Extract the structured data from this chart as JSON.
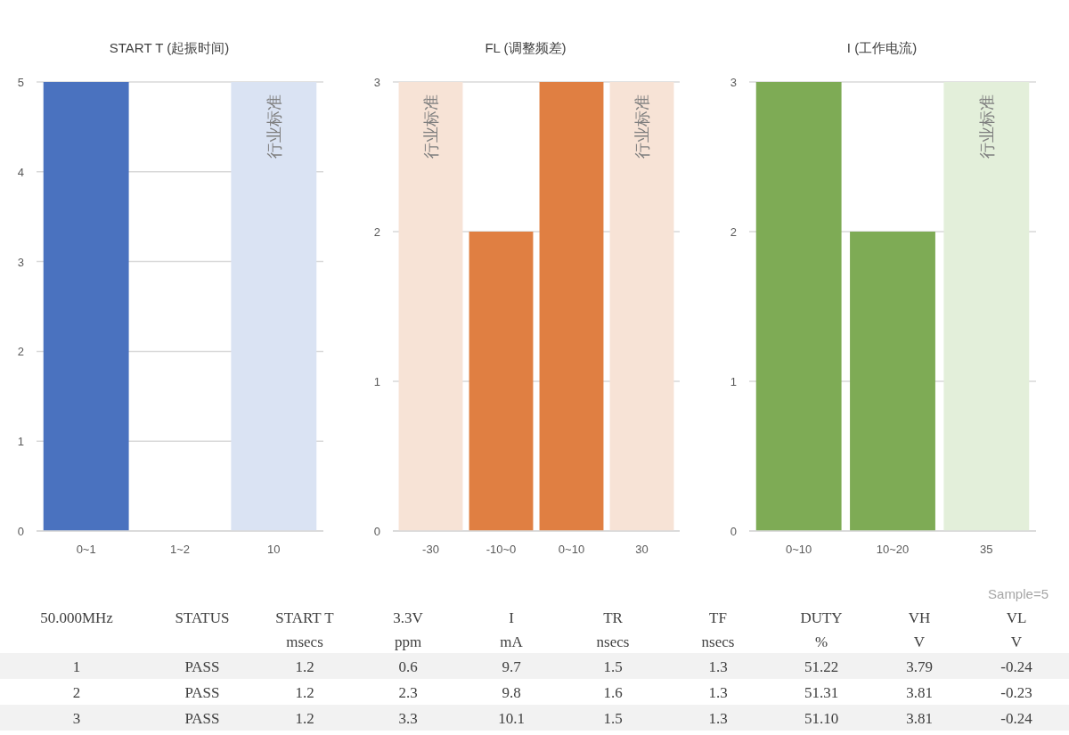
{
  "chart_data": [
    {
      "type": "bar",
      "title": "START T (起振时间)",
      "categories": [
        "0~1",
        "1~2",
        "10"
      ],
      "values": [
        5,
        0,
        5
      ],
      "colors": [
        "#4a72bf",
        "#4a72bf",
        "#dae3f3"
      ],
      "ylim": [
        0,
        5
      ],
      "yticks": [
        0,
        1,
        2,
        3,
        4,
        5
      ],
      "grid": "y",
      "annotations": [
        {
          "text": "行业标准",
          "x": "10",
          "y": 5
        }
      ]
    },
    {
      "type": "bar",
      "title": "FL (调整频差)",
      "categories": [
        "-30",
        "-10~0",
        "0~10",
        "30"
      ],
      "values": [
        3,
        2,
        3,
        3
      ],
      "colors": [
        "#f7e3d6",
        "#e07f42",
        "#e07f42",
        "#f7e3d6"
      ],
      "ylim": [
        0,
        3
      ],
      "yticks": [
        0,
        1,
        2,
        3
      ],
      "grid": "y",
      "annotations": [
        {
          "text": "行业标准",
          "x": "-30",
          "y": 3
        },
        {
          "text": "行业标准",
          "x": "30",
          "y": 3
        }
      ]
    },
    {
      "type": "bar",
      "title": "I (工作电流)",
      "categories": [
        "0~10",
        "10~20",
        "35"
      ],
      "values": [
        3,
        2,
        3
      ],
      "colors": [
        "#7eab55",
        "#7eab55",
        "#e3efda"
      ],
      "ylim": [
        0,
        3
      ],
      "yticks": [
        0,
        1,
        2,
        3
      ],
      "grid": "y",
      "annotations": [
        {
          "text": "行业标准",
          "x": "35",
          "y": 3
        }
      ]
    },
    {
      "type": "other",
      "annotations": [
        "Sample=5",
        "50.000MHz",
        "STATUS",
        "START T\nmsecs",
        "3.3V\nppm",
        "I\nmA",
        "TR\nnsecs",
        "TF\nnsecs",
        "DUTY\n%",
        "VH\nV",
        "VL\nV",
        "1",
        "PASS",
        "1.2",
        "0.6",
        "9.7",
        "1.5",
        "1.3",
        "51.22",
        "3.79",
        "-0.24",
        "2",
        "PASS",
        "1.2",
        "2.3",
        "9.8",
        "1.6",
        "1.3",
        "51.31",
        "3.81",
        "-0.23",
        "3",
        "PASS",
        "1.2",
        "3.3",
        "10.1",
        "1.5",
        "1.3",
        "51.10",
        "3.81",
        "-0.24"
      ]
    }
  ]
}
